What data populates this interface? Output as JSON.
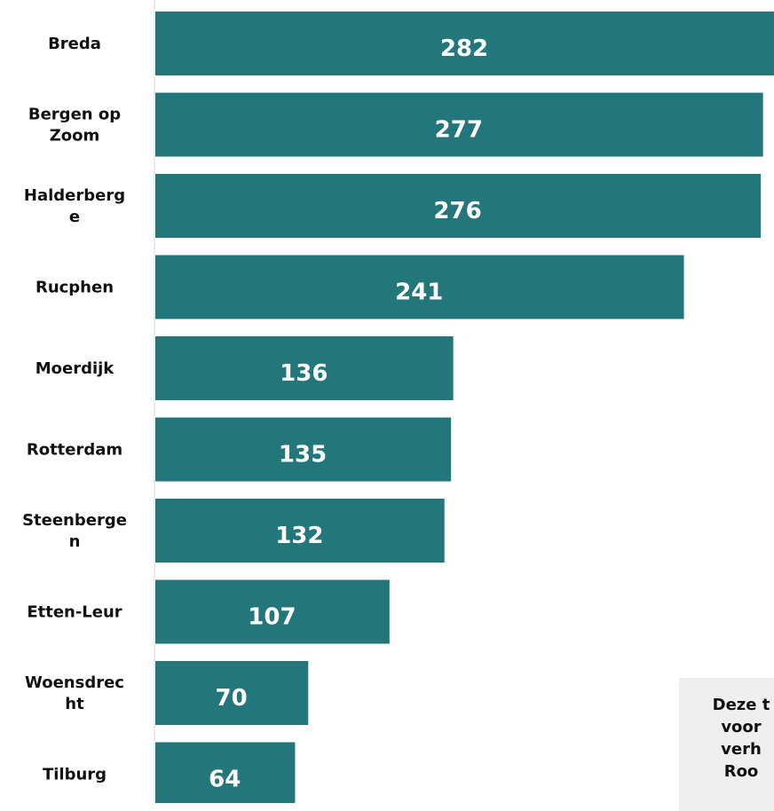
{
  "chart_data": {
    "type": "bar",
    "orientation": "horizontal",
    "categories": [
      [
        "Breda"
      ],
      [
        "Bergen op",
        "Zoom"
      ],
      [
        "Halderberg",
        "e"
      ],
      [
        "Rucphen"
      ],
      [
        "Moerdijk"
      ],
      [
        "Rotterdam"
      ],
      [
        "Steenberge",
        "n"
      ],
      [
        "Etten-Leur"
      ],
      [
        "Woensdrec",
        "ht"
      ],
      [
        "Tilburg"
      ]
    ],
    "values": [
      282,
      277,
      276,
      241,
      136,
      135,
      132,
      107,
      70,
      64
    ],
    "xlim": [
      0,
      282
    ],
    "grid": false,
    "legend": "none",
    "colors": {
      "bar": "#23777A",
      "axis": "#d9d9d9",
      "value_text": "#ffffff",
      "label_text": "#111111"
    }
  },
  "note": {
    "lines": [
      "Deze t",
      "voor",
      "verh",
      "Roo"
    ],
    "background": "#efefef"
  }
}
